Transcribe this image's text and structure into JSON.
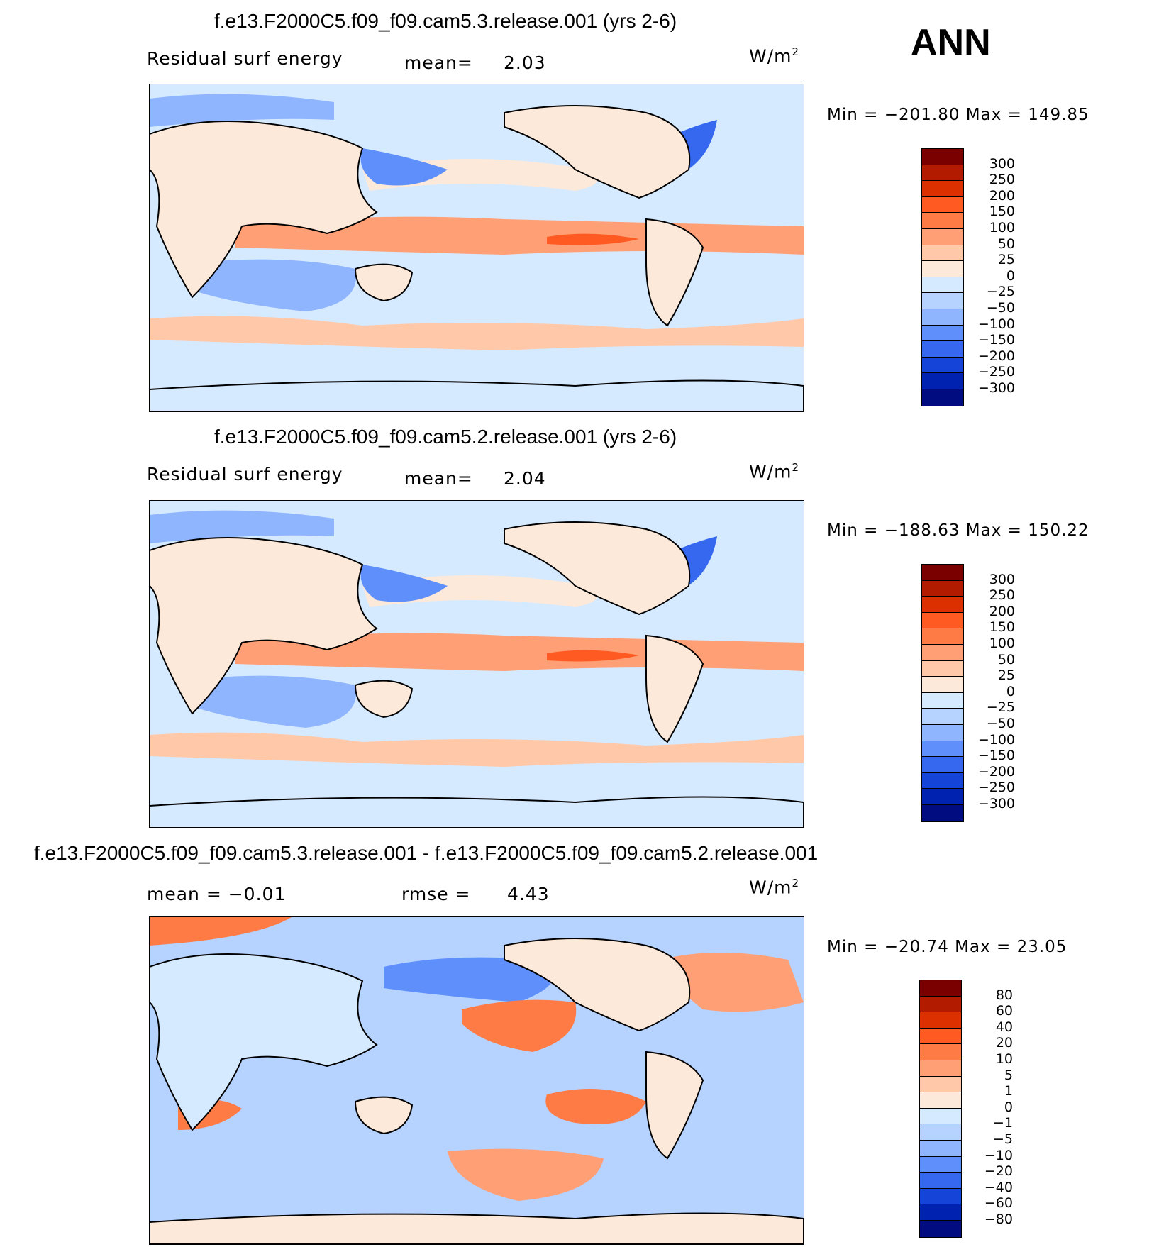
{
  "season": "ANN",
  "units_label": "W/m",
  "units_sup": "2",
  "panels": [
    {
      "title": "f.e13.F2000C5.f09_f09.cam5.3.release.001 (yrs 2-6)",
      "left_label": "Residual surf energy",
      "stat1_label": "mean=",
      "stat1_value": "2.03",
      "minmax": "Min = −201.80 Max = 149.85"
    },
    {
      "title": "f.e13.F2000C5.f09_f09.cam5.2.release.001 (yrs 2-6)",
      "left_label": "Residual surf energy",
      "stat1_label": "mean=",
      "stat1_value": "2.04",
      "minmax": "Min = −188.63 Max = 150.22"
    },
    {
      "title": "f.e13.F2000C5.f09_f09.cam5.3.release.001 - f.e13.F2000C5.f09_f09.cam5.2.release.001",
      "left_label": "mean =  −0.01",
      "stat1_label": "rmse =",
      "stat1_value": "4.43",
      "minmax": "Min = −20.74 Max =  23.05"
    }
  ],
  "chart_data": [
    {
      "type": "heatmap",
      "title": "f.e13.F2000C5.f09_f09.cam5.3.release.001 (yrs 2-6)",
      "variable": "Residual surf energy",
      "units": "W/m2",
      "mean": 2.03,
      "min": -201.8,
      "max": 149.85,
      "colorbar_levels": [
        300,
        250,
        200,
        150,
        100,
        50,
        25,
        0,
        -25,
        -50,
        -100,
        -150,
        -200,
        -250,
        -300
      ],
      "colorbar_labels": [
        "300",
        "250",
        "200",
        "150",
        "100",
        "50",
        "25",
        "0",
        "−25",
        "−50",
        "−100",
        "−150",
        "−200",
        "−250",
        "−300"
      ],
      "colors": [
        "#7a0000",
        "#b31b00",
        "#dd3000",
        "#ff5a22",
        "#ff7b45",
        "#ff9f75",
        "#ffc8a8",
        "#fde9d9",
        "#d6eaff",
        "#b6d2ff",
        "#8fb5ff",
        "#5e8ffb",
        "#3568ef",
        "#1444d8",
        "#0022b0",
        "#000c80"
      ]
    },
    {
      "type": "heatmap",
      "title": "f.e13.F2000C5.f09_f09.cam5.2.release.001 (yrs 2-6)",
      "variable": "Residual surf energy",
      "units": "W/m2",
      "mean": 2.04,
      "min": -188.63,
      "max": 150.22,
      "colorbar_levels": [
        300,
        250,
        200,
        150,
        100,
        50,
        25,
        0,
        -25,
        -50,
        -100,
        -150,
        -200,
        -250,
        -300
      ],
      "colorbar_labels": [
        "300",
        "250",
        "200",
        "150",
        "100",
        "50",
        "25",
        "0",
        "−25",
        "−50",
        "−100",
        "−150",
        "−200",
        "−250",
        "−300"
      ],
      "colors": [
        "#7a0000",
        "#b31b00",
        "#dd3000",
        "#ff5a22",
        "#ff7b45",
        "#ff9f75",
        "#ffc8a8",
        "#fde9d9",
        "#d6eaff",
        "#b6d2ff",
        "#8fb5ff",
        "#5e8ffb",
        "#3568ef",
        "#1444d8",
        "#0022b0",
        "#000c80"
      ]
    },
    {
      "type": "heatmap",
      "title": "f.e13.F2000C5.f09_f09.cam5.3.release.001 - f.e13.F2000C5.f09_f09.cam5.2.release.001",
      "units": "W/m2",
      "mean": -0.01,
      "rmse": 4.43,
      "min": -20.74,
      "max": 23.05,
      "colorbar_levels": [
        80,
        60,
        40,
        20,
        10,
        5,
        1,
        0,
        -1,
        -5,
        -10,
        -20,
        -40,
        -60,
        -80
      ],
      "colorbar_labels": [
        "80",
        "60",
        "40",
        "20",
        "10",
        "5",
        "1",
        "0",
        "−1",
        "−5",
        "−10",
        "−20",
        "−40",
        "−60",
        "−80"
      ],
      "colors": [
        "#7a0000",
        "#b31b00",
        "#dd3000",
        "#ff5a22",
        "#ff7b45",
        "#ff9f75",
        "#ffc8a8",
        "#fde9d9",
        "#d6eaff",
        "#b6d2ff",
        "#8fb5ff",
        "#5e8ffb",
        "#3568ef",
        "#1444d8",
        "#0022b0",
        "#000c80"
      ]
    }
  ]
}
